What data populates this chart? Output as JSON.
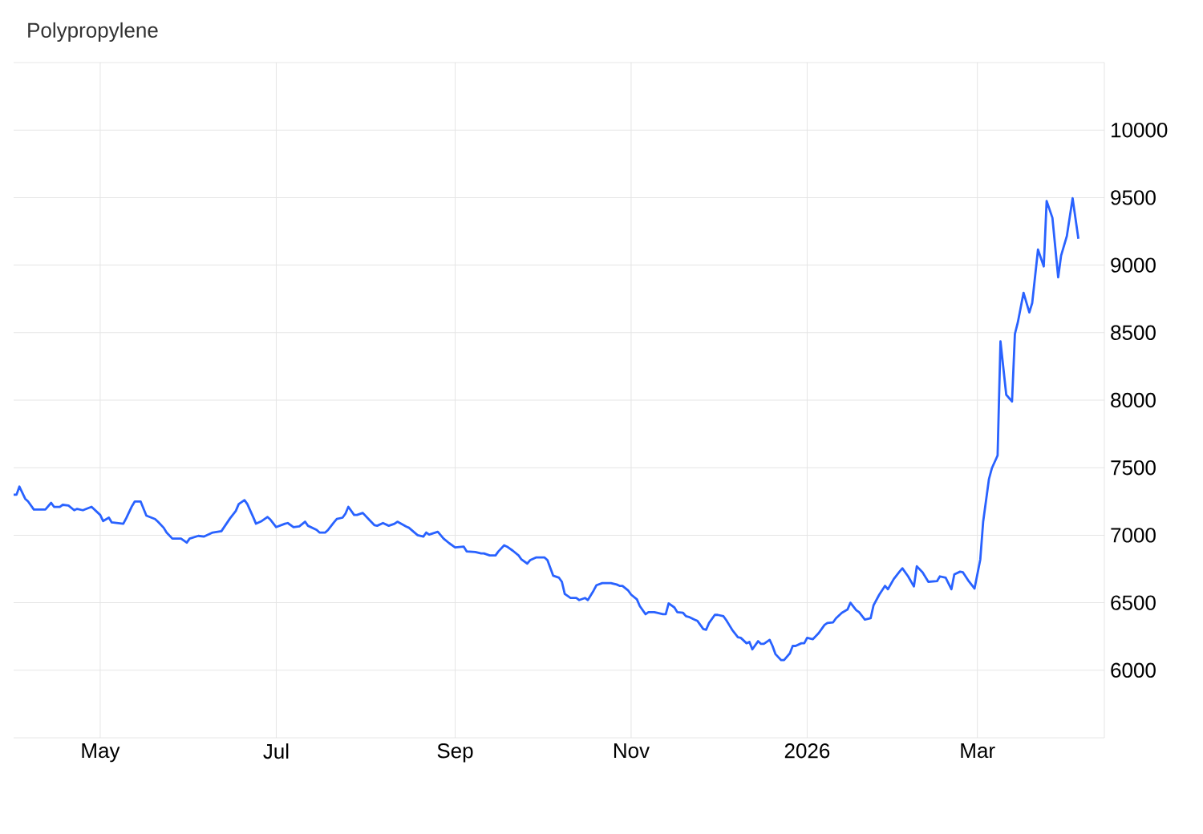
{
  "chart_data": {
    "type": "line",
    "title": "Polypropylene",
    "color": "#2962ff",
    "grid": true,
    "xlim": [
      "2025-04-01",
      "2026-04-14"
    ],
    "ylim": [
      5500,
      10500
    ],
    "xticks": [
      {
        "value": "2025-05-01",
        "label": "May"
      },
      {
        "value": "2025-07-01",
        "label": "Jul"
      },
      {
        "value": "2025-09-01",
        "label": "Sep"
      },
      {
        "value": "2025-11-01",
        "label": "Nov"
      },
      {
        "value": "2026-01-01",
        "label": "2026"
      },
      {
        "value": "2026-03-01",
        "label": "Mar"
      }
    ],
    "yticks": [
      6000,
      6500,
      7000,
      7500,
      8000,
      8500,
      9000,
      9500,
      10000
    ],
    "x": [
      "2025-04-01",
      "2025-04-02",
      "2025-04-03",
      "2025-04-05",
      "2025-04-06",
      "2025-04-08",
      "2025-04-12",
      "2025-04-14",
      "2025-04-15",
      "2025-04-17",
      "2025-04-18",
      "2025-04-20",
      "2025-04-22",
      "2025-04-23",
      "2025-04-25",
      "2025-04-28",
      "2025-05-01",
      "2025-05-02",
      "2025-05-04",
      "2025-05-05",
      "2025-05-09",
      "2025-05-10",
      "2025-05-12",
      "2025-05-13",
      "2025-05-15",
      "2025-05-17",
      "2025-05-20",
      "2025-05-21",
      "2025-05-23",
      "2025-05-24",
      "2025-05-26",
      "2025-05-29",
      "2025-05-31",
      "2025-06-01",
      "2025-06-04",
      "2025-06-06",
      "2025-06-09",
      "2025-06-12",
      "2025-06-15",
      "2025-06-17",
      "2025-06-18",
      "2025-06-20",
      "2025-06-21",
      "2025-06-23",
      "2025-06-24",
      "2025-06-26",
      "2025-06-28",
      "2025-06-29",
      "2025-07-01",
      "2025-07-04",
      "2025-07-05",
      "2025-07-07",
      "2025-07-09",
      "2025-07-11",
      "2025-07-12",
      "2025-07-15",
      "2025-07-16",
      "2025-07-18",
      "2025-07-19",
      "2025-07-21",
      "2025-07-22",
      "2025-07-24",
      "2025-07-25",
      "2025-07-26",
      "2025-07-28",
      "2025-07-29",
      "2025-07-31",
      "2025-08-02",
      "2025-08-04",
      "2025-08-05",
      "2025-08-07",
      "2025-08-09",
      "2025-08-11",
      "2025-08-12",
      "2025-08-15",
      "2025-08-16",
      "2025-08-19",
      "2025-08-21",
      "2025-08-22",
      "2025-08-23",
      "2025-08-26",
      "2025-08-28",
      "2025-08-30",
      "2025-09-01",
      "2025-09-04",
      "2025-09-05",
      "2025-09-08",
      "2025-09-10",
      "2025-09-11",
      "2025-09-13",
      "2025-09-15",
      "2025-09-16",
      "2025-09-18",
      "2025-09-19",
      "2025-09-21",
      "2025-09-23",
      "2025-09-24",
      "2025-09-26",
      "2025-09-27",
      "2025-09-29",
      "2025-10-02",
      "2025-10-03",
      "2025-10-05",
      "2025-10-07",
      "2025-10-08",
      "2025-10-09",
      "2025-10-11",
      "2025-10-13",
      "2025-10-14",
      "2025-10-16",
      "2025-10-17",
      "2025-10-19",
      "2025-10-20",
      "2025-10-22",
      "2025-10-25",
      "2025-10-27",
      "2025-10-28",
      "2025-10-29",
      "2025-10-31",
      "2025-11-01",
      "2025-11-03",
      "2025-11-04",
      "2025-11-06",
      "2025-11-07",
      "2025-11-09",
      "2025-11-10",
      "2025-11-12",
      "2025-11-13",
      "2025-11-14",
      "2025-11-16",
      "2025-11-17",
      "2025-11-19",
      "2025-11-20",
      "2025-11-21",
      "2025-11-23",
      "2025-11-24",
      "2025-11-26",
      "2025-11-27",
      "2025-11-28",
      "2025-11-30",
      "2025-12-01",
      "2025-12-03",
      "2025-12-04",
      "2025-12-05",
      "2025-12-06",
      "2025-12-08",
      "2025-12-09",
      "2025-12-11",
      "2025-12-12",
      "2025-12-13",
      "2025-12-15",
      "2025-12-16",
      "2025-12-17",
      "2025-12-19",
      "2025-12-20",
      "2025-12-21",
      "2025-12-23",
      "2025-12-24",
      "2025-12-26",
      "2025-12-27",
      "2025-12-28",
      "2025-12-30",
      "2025-12-31",
      "2026-01-01",
      "2026-01-03",
      "2026-01-05",
      "2026-01-07",
      "2026-01-08",
      "2026-01-10",
      "2026-01-11",
      "2026-01-13",
      "2026-01-15",
      "2026-01-16",
      "2026-01-18",
      "2026-01-19",
      "2026-01-21",
      "2026-01-23",
      "2026-01-24",
      "2026-01-26",
      "2026-01-28",
      "2026-01-29",
      "2026-01-31",
      "2026-02-02",
      "2026-02-03",
      "2026-02-05",
      "2026-02-07",
      "2026-02-08",
      "2026-02-10",
      "2026-02-12",
      "2026-02-15",
      "2026-02-16",
      "2026-02-18",
      "2026-02-20",
      "2026-02-21",
      "2026-02-23",
      "2026-02-24",
      "2026-02-26",
      "2026-02-28",
      "2026-03-02",
      "2026-03-03",
      "2026-03-05",
      "2026-03-06",
      "2026-03-08",
      "2026-03-09",
      "2026-03-11",
      "2026-03-13",
      "2026-03-14",
      "2026-03-15",
      "2026-03-17",
      "2026-03-19",
      "2026-03-20",
      "2026-03-22",
      "2026-03-24",
      "2026-03-25",
      "2026-03-27",
      "2026-03-29",
      "2026-03-30",
      "2026-04-01",
      "2026-04-03",
      "2026-04-05"
    ],
    "values": [
      7300,
      7300,
      7360,
      7270,
      7250,
      7190,
      7190,
      7240,
      7210,
      7210,
      7225,
      7220,
      7185,
      7195,
      7185,
      7210,
      7150,
      7105,
      7130,
      7095,
      7085,
      7125,
      7215,
      7250,
      7250,
      7145,
      7120,
      7100,
      7055,
      7020,
      6975,
      6975,
      6945,
      6975,
      6995,
      6990,
      7020,
      7030,
      7125,
      7180,
      7230,
      7260,
      7230,
      7135,
      7085,
      7105,
      7135,
      7115,
      7060,
      7085,
      7090,
      7060,
      7065,
      7100,
      7070,
      7040,
      7020,
      7020,
      7040,
      7095,
      7120,
      7130,
      7160,
      7210,
      7150,
      7150,
      7165,
      7120,
      7075,
      7070,
      7090,
      7070,
      7085,
      7100,
      7065,
      7055,
      7000,
      6990,
      7020,
      7005,
      7025,
      6975,
      6940,
      6910,
      6915,
      6880,
      6875,
      6865,
      6865,
      6850,
      6850,
      6880,
      6925,
      6915,
      6885,
      6850,
      6820,
      6790,
      6815,
      6835,
      6835,
      6815,
      6700,
      6685,
      6655,
      6565,
      6535,
      6535,
      6520,
      6535,
      6520,
      6590,
      6630,
      6645,
      6645,
      6635,
      6625,
      6625,
      6590,
      6560,
      6525,
      6475,
      6415,
      6430,
      6430,
      6425,
      6415,
      6415,
      6495,
      6465,
      6430,
      6425,
      6400,
      6395,
      6375,
      6365,
      6305,
      6300,
      6350,
      6410,
      6410,
      6400,
      6370,
      6335,
      6300,
      6245,
      6240,
      6200,
      6210,
      6155,
      6215,
      6195,
      6195,
      6225,
      6180,
      6120,
      6075,
      6075,
      6125,
      6180,
      6180,
      6200,
      6200,
      6240,
      6230,
      6275,
      6335,
      6350,
      6355,
      6385,
      6425,
      6450,
      6500,
      6445,
      6430,
      6375,
      6385,
      6480,
      6560,
      6625,
      6600,
      6675,
      6730,
      6755,
      6695,
      6620,
      6770,
      6725,
      6655,
      6660,
      6695,
      6685,
      6600,
      6710,
      6730,
      6725,
      6660,
      6605,
      6820,
      7100,
      7415,
      7495,
      7590,
      8435,
      8040,
      7990,
      8490,
      8575,
      8795,
      8650,
      8720,
      9115,
      8990,
      9475,
      9350,
      8910,
      9070,
      9215,
      9495,
      9195
    ]
  }
}
